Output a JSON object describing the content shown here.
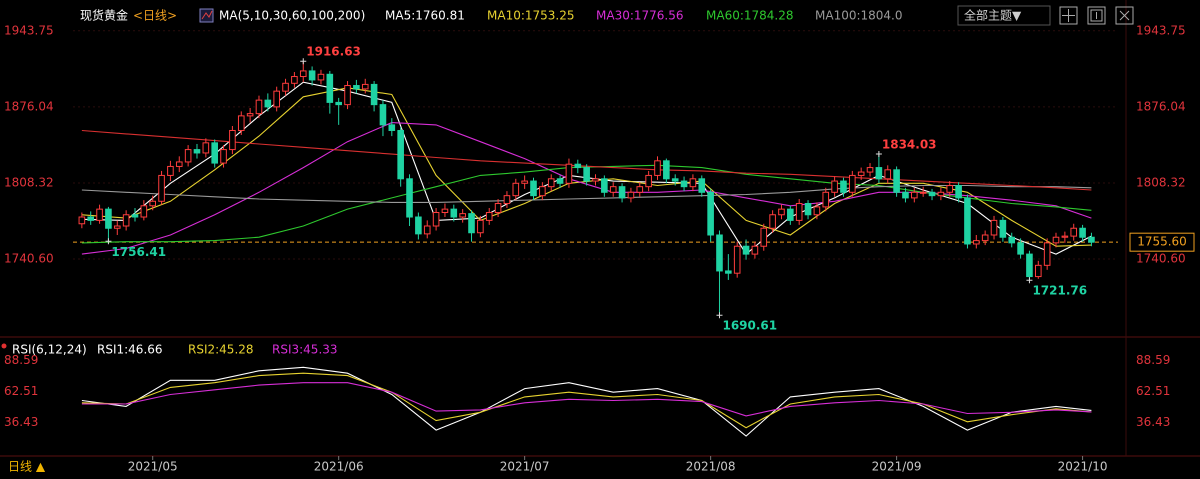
{
  "toolbar": {
    "theme": "全部主题▼"
  },
  "footer": {
    "period": "日线 ▲"
  },
  "chart_data": [
    {
      "type": "candlestick",
      "title": "现货黄金",
      "period": "<日线>",
      "indicator": "MA(5,10,30,60,100,200)",
      "xlim": [
        -1,
        117
      ],
      "ylim": [
        1673,
        1964
      ],
      "yticks": [
        1943.75,
        1876.04,
        1808.32,
        {
          "value": 1740.6,
          "label": "1740.60"
        }
      ],
      "grid": true,
      "up_color": "#ff3d3d",
      "down_color": "#1fd3a3",
      "candles": [
        [
          1772,
          1782,
          1768,
          1778
        ],
        [
          1778,
          1783,
          1771,
          1775
        ],
        [
          1775,
          1789,
          1772,
          1785
        ],
        [
          1785,
          1787,
          1756.41,
          1768
        ],
        [
          1768,
          1775,
          1762,
          1770
        ],
        [
          1770,
          1784,
          1766,
          1780
        ],
        [
          1780,
          1786,
          1774,
          1778
        ],
        [
          1778,
          1793,
          1775,
          1788
        ],
        [
          1788,
          1797,
          1784,
          1792
        ],
        [
          1792,
          1819,
          1789,
          1815
        ],
        [
          1815,
          1828,
          1810,
          1823
        ],
        [
          1823,
          1832,
          1818,
          1827
        ],
        [
          1827,
          1842,
          1823,
          1838
        ],
        [
          1838,
          1843,
          1830,
          1835
        ],
        [
          1835,
          1848,
          1831,
          1844
        ],
        [
          1844,
          1847,
          1822,
          1826
        ],
        [
          1826,
          1842,
          1822,
          1838
        ],
        [
          1838,
          1859,
          1834,
          1855
        ],
        [
          1855,
          1872,
          1851,
          1868
        ],
        [
          1868,
          1875,
          1862,
          1870
        ],
        [
          1870,
          1886,
          1866,
          1882
        ],
        [
          1882,
          1888,
          1872,
          1876
        ],
        [
          1876,
          1894,
          1872,
          1890
        ],
        [
          1890,
          1901,
          1886,
          1897
        ],
        [
          1897,
          1907,
          1893,
          1903
        ],
        [
          1903,
          1916.63,
          1898,
          1908
        ],
        [
          1908,
          1912,
          1895,
          1900
        ],
        [
          1900,
          1909,
          1896,
          1905
        ],
        [
          1905,
          1908,
          1870,
          1880
        ],
        [
          1880,
          1884,
          1860,
          1878
        ],
        [
          1878,
          1899,
          1874,
          1895
        ],
        [
          1895,
          1900,
          1888,
          1892
        ],
        [
          1892,
          1901,
          1888,
          1896
        ],
        [
          1896,
          1899,
          1872,
          1878
        ],
        [
          1878,
          1882,
          1850,
          1860
        ],
        [
          1860,
          1866,
          1850,
          1855
        ],
        [
          1855,
          1858,
          1805,
          1812
        ],
        [
          1812,
          1816,
          1770,
          1778
        ],
        [
          1778,
          1782,
          1758,
          1763
        ],
        [
          1763,
          1775,
          1759,
          1770
        ],
        [
          1770,
          1786,
          1766,
          1782
        ],
        [
          1782,
          1790,
          1778,
          1785
        ],
        [
          1785,
          1789,
          1774,
          1778
        ],
        [
          1778,
          1785,
          1773,
          1781
        ],
        [
          1781,
          1784,
          1756,
          1764
        ],
        [
          1764,
          1779,
          1760,
          1775
        ],
        [
          1775,
          1786,
          1771,
          1782
        ],
        [
          1782,
          1794,
          1778,
          1790
        ],
        [
          1790,
          1801,
          1786,
          1797
        ],
        [
          1797,
          1812,
          1793,
          1808
        ],
        [
          1808,
          1815,
          1803,
          1810
        ],
        [
          1810,
          1813,
          1793,
          1797
        ],
        [
          1797,
          1809,
          1793,
          1805
        ],
        [
          1805,
          1816,
          1801,
          1812
        ],
        [
          1812,
          1815,
          1804,
          1808
        ],
        [
          1808,
          1830,
          1804,
          1825
        ],
        [
          1825,
          1829,
          1817,
          1822
        ],
        [
          1822,
          1825,
          1806,
          1810
        ],
        [
          1810,
          1816,
          1806,
          1812
        ],
        [
          1812,
          1815,
          1796,
          1800
        ],
        [
          1800,
          1809,
          1796,
          1805
        ],
        [
          1805,
          1808,
          1791,
          1795
        ],
        [
          1795,
          1804,
          1791,
          1800
        ],
        [
          1800,
          1809,
          1796,
          1805
        ],
        [
          1805,
          1819,
          1801,
          1815
        ],
        [
          1815,
          1832,
          1811,
          1828
        ],
        [
          1828,
          1830,
          1808,
          1812
        ],
        [
          1812,
          1816,
          1806,
          1810
        ],
        [
          1810,
          1814,
          1801,
          1805
        ],
        [
          1805,
          1816,
          1801,
          1812
        ],
        [
          1812,
          1815,
          1796,
          1800
        ],
        [
          1800,
          1803,
          1756,
          1762
        ],
        [
          1762,
          1766,
          1690.61,
          1730
        ],
        [
          1730,
          1745,
          1722,
          1728
        ],
        [
          1728,
          1756,
          1724,
          1752
        ],
        [
          1752,
          1758,
          1740,
          1745
        ],
        [
          1745,
          1756,
          1741,
          1752
        ],
        [
          1752,
          1772,
          1748,
          1768
        ],
        [
          1768,
          1784,
          1764,
          1780
        ],
        [
          1780,
          1789,
          1776,
          1785
        ],
        [
          1785,
          1788,
          1771,
          1775
        ],
        [
          1775,
          1794,
          1771,
          1790
        ],
        [
          1790,
          1793,
          1776,
          1780
        ],
        [
          1780,
          1791,
          1776,
          1787
        ],
        [
          1787,
          1804,
          1783,
          1800
        ],
        [
          1800,
          1814,
          1796,
          1810
        ],
        [
          1810,
          1813,
          1796,
          1800
        ],
        [
          1800,
          1819,
          1796,
          1815
        ],
        [
          1815,
          1822,
          1811,
          1818
        ],
        [
          1818,
          1826,
          1814,
          1822
        ],
        [
          1822,
          1834.03,
          1808,
          1812
        ],
        [
          1812,
          1824,
          1808,
          1820
        ],
        [
          1820,
          1823,
          1796,
          1800
        ],
        [
          1800,
          1804,
          1791,
          1795
        ],
        [
          1795,
          1804,
          1791,
          1800
        ],
        [
          1800,
          1805,
          1796,
          1800
        ],
        [
          1800,
          1803,
          1793,
          1797
        ],
        [
          1797,
          1804,
          1793,
          1800
        ],
        [
          1800,
          1810,
          1796,
          1806
        ],
        [
          1806,
          1809,
          1791,
          1795
        ],
        [
          1795,
          1798,
          1750,
          1754
        ],
        [
          1754,
          1762,
          1750,
          1757
        ],
        [
          1757,
          1766,
          1753,
          1762
        ],
        [
          1762,
          1779,
          1758,
          1775
        ],
        [
          1775,
          1778,
          1756,
          1760
        ],
        [
          1760,
          1764,
          1751,
          1755
        ],
        [
          1755,
          1759,
          1741,
          1745
        ],
        [
          1745,
          1748,
          1721.76,
          1725
        ],
        [
          1725,
          1739,
          1723,
          1735
        ],
        [
          1735,
          1759,
          1731,
          1755
        ],
        [
          1755,
          1764,
          1751,
          1760
        ],
        [
          1760,
          1765,
          1755,
          1761
        ],
        [
          1761,
          1772,
          1757,
          1768
        ],
        [
          1768,
          1771,
          1756,
          1760
        ],
        [
          1760,
          1764,
          1752,
          1755.6
        ]
      ],
      "ma_x": [
        0,
        5,
        10,
        15,
        20,
        25,
        30,
        35,
        40,
        45,
        50,
        55,
        60,
        65,
        70,
        75,
        80,
        85,
        90,
        95,
        100,
        105,
        110,
        114
      ],
      "series": [
        {
          "name": "MA5:1760.81",
          "color": "#ffffff",
          "values": [
            1776,
            1775,
            1808,
            1834,
            1868,
            1898,
            1890,
            1880,
            1775,
            1777,
            1798,
            1815,
            1810,
            1809,
            1808,
            1745,
            1778,
            1795,
            1815,
            1802,
            1790,
            1760,
            1745,
            1761
          ]
        },
        {
          "name": "MA10:1753.25",
          "color": "#e6d230",
          "values": [
            1780,
            1777,
            1792,
            1820,
            1850,
            1885,
            1893,
            1887,
            1815,
            1775,
            1790,
            1808,
            1812,
            1806,
            1810,
            1775,
            1762,
            1790,
            1808,
            1808,
            1800,
            1775,
            1752,
            1753
          ]
        },
        {
          "name": "MA30:1776.56",
          "color": "#d62ed6",
          "values": [
            1745,
            1750,
            1762,
            1780,
            1800,
            1822,
            1845,
            1862,
            1860,
            1845,
            1830,
            1812,
            1800,
            1800,
            1802,
            1795,
            1788,
            1792,
            1800,
            1800,
            1797,
            1793,
            1788,
            1777
          ]
        },
        {
          "name": "MA60:1784.28",
          "color": "#2ec82e",
          "values": [
            1755,
            1756,
            1756,
            1757,
            1760,
            1770,
            1785,
            1795,
            1805,
            1815,
            1818,
            1822,
            1823,
            1824,
            1822,
            1816,
            1812,
            1808,
            1806,
            1800,
            1795,
            1790,
            1787,
            1784
          ]
        },
        {
          "name": "MA100:1804.0",
          "color": "#9a9a9a",
          "values": [
            1802,
            1800,
            1798,
            1796,
            1794,
            1793,
            1792,
            1791,
            1791,
            1792,
            1793,
            1794,
            1795,
            1796,
            1797,
            1798,
            1800,
            1803,
            1805,
            1806,
            1806,
            1805,
            1805,
            1804
          ]
        },
        {
          "color": "#d83030",
          "values": [
            1855,
            1852,
            1849,
            1846,
            1843,
            1840,
            1837,
            1834,
            1831,
            1828,
            1826,
            1824,
            1822,
            1820,
            1819,
            1817,
            1816,
            1814,
            1812,
            1810,
            1808,
            1806,
            1804,
            1802
          ]
        }
      ],
      "current": {
        "value": 1755.6,
        "label": "1755.60",
        "color": "#f0a020"
      },
      "annotations": [
        {
          "value": 1916.63,
          "x": 25
        },
        {
          "value": 1834.03,
          "x": 90
        },
        {
          "value": 1756.41,
          "x": 3
        },
        {
          "value": 1690.61,
          "x": 72
        },
        {
          "value": 1721.76,
          "x": 107
        }
      ]
    },
    {
      "type": "line",
      "indicator": "RSI(6,12,24)",
      "xlim": [
        -1,
        117
      ],
      "ylim": [
        9,
        106
      ],
      "yticks": [
        88.59,
        62.51,
        36.43
      ],
      "xticks": [
        {
          "value": 8,
          "label": "2021/05"
        },
        {
          "value": 29,
          "label": "2021/06"
        },
        {
          "value": 50,
          "label": "2021/07"
        },
        {
          "value": 71,
          "label": "2021/08"
        },
        {
          "value": 92,
          "label": "2021/09"
        },
        {
          "value": 113,
          "label": "2021/10"
        }
      ],
      "x": [
        0,
        5,
        10,
        15,
        20,
        25,
        30,
        35,
        40,
        45,
        50,
        55,
        60,
        65,
        70,
        75,
        80,
        85,
        90,
        95,
        100,
        105,
        110,
        114
      ],
      "series": [
        {
          "name": "RSI1:46.66",
          "color": "#ffffff",
          "values": [
            55,
            50,
            72,
            72,
            80,
            83,
            78,
            60,
            30,
            45,
            65,
            70,
            62,
            65,
            55,
            25,
            58,
            62,
            65,
            50,
            30,
            45,
            50,
            46.66
          ]
        },
        {
          "name": "RSI2:45.28",
          "color": "#e6d230",
          "values": [
            53,
            52,
            66,
            70,
            76,
            78,
            76,
            62,
            38,
            45,
            58,
            62,
            58,
            60,
            55,
            32,
            52,
            58,
            60,
            52,
            37,
            43,
            48,
            45.28
          ]
        },
        {
          "name": "RSI3:45.33",
          "color": "#d62ed6",
          "values": [
            52,
            52,
            60,
            64,
            68,
            70,
            70,
            62,
            46,
            47,
            53,
            56,
            55,
            56,
            54,
            42,
            50,
            53,
            55,
            52,
            44,
            45,
            47,
            45.33
          ]
        }
      ]
    }
  ]
}
